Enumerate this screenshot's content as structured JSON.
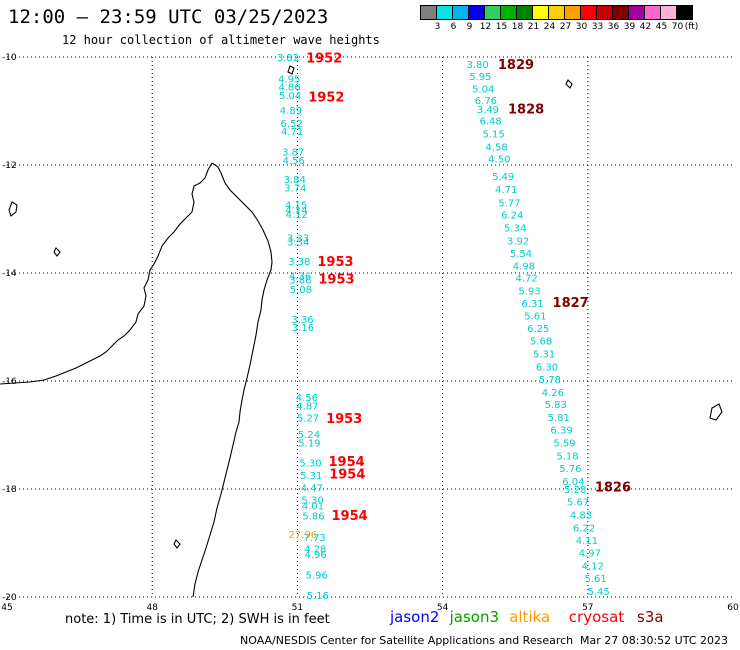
{
  "title": "12:00 — 23:59 UTC 03/25/2023",
  "subtitle": "12 hour collection of altimeter wave heights",
  "legend": {
    "unit": "(ft)",
    "labels": [
      "3",
      "6",
      "9",
      "12",
      "15",
      "18",
      "21",
      "24",
      "27",
      "30",
      "33",
      "36",
      "39",
      "42",
      "45",
      "70"
    ],
    "colors": [
      "#808080",
      "#00e5e5",
      "#00b4f0",
      "#0000f0",
      "#30d060",
      "#00b000",
      "#008000",
      "#ffff00",
      "#ffd000",
      "#ffa000",
      "#ff0000",
      "#c80000",
      "#800000",
      "#a000a0",
      "#ff66cc",
      "#ffb0d8",
      "#000000"
    ]
  },
  "axes": {
    "lon_ticks": [
      "45",
      "48",
      "51",
      "54",
      "57",
      "60"
    ],
    "lat_ticks": [
      "-10",
      "-12",
      "-14",
      "-16",
      "-18",
      "-20"
    ]
  },
  "note": "note: 1) Time is in UTC; 2) SWH is in feet",
  "satellites": [
    {
      "name": "jason2",
      "color": "#0000ff"
    },
    {
      "name": "jason3",
      "color": "#00a000"
    },
    {
      "name": "altika",
      "color": "#ff9900"
    },
    {
      "name": "cryosat",
      "color": "#ff0000"
    },
    {
      "name": "s3a",
      "color": "#800000"
    }
  ],
  "credit": "NOAA/NESDIS Center for Satellite Applications and Research",
  "timestamp": "Mar 27 08:30:52 UTC 2023",
  "colors": {
    "swh_cyan": "#00cccc",
    "time_red": "#ff0000",
    "time_dark": "#800000",
    "altika": "#ff9900"
  },
  "track_west": {
    "values": [
      {
        "v": "3.82",
        "lat": -10.0
      },
      {
        "v": "4.95",
        "lat": -10.4
      },
      {
        "v": "4.86",
        "lat": -10.55
      },
      {
        "v": "5.04",
        "lat": -10.7
      },
      {
        "v": "4.89",
        "lat": -10.98
      },
      {
        "v": "6.52",
        "lat": -11.22
      },
      {
        "v": "4.71",
        "lat": -11.37
      },
      {
        "v": "3.87",
        "lat": -11.75
      },
      {
        "v": "4.56",
        "lat": -11.91
      },
      {
        "v": "3.84",
        "lat": -12.26
      },
      {
        "v": "3.74",
        "lat": -12.42
      },
      {
        "v": "4.15",
        "lat": -12.73
      },
      {
        "v": "4.14",
        "lat": -12.82
      },
      {
        "v": "4.12",
        "lat": -12.91
      },
      {
        "v": "3.33",
        "lat": -13.34
      },
      {
        "v": "3.34",
        "lat": -13.42
      },
      {
        "v": "3.38",
        "lat": -13.78
      },
      {
        "v": "4.36",
        "lat": -14.05
      },
      {
        "v": "3.86",
        "lat": -14.12
      },
      {
        "v": "5.08",
        "lat": -14.3
      },
      {
        "v": "3.36",
        "lat": -14.85
      },
      {
        "v": "3.16",
        "lat": -15.0
      },
      {
        "v": "4.56",
        "lat": -16.3
      },
      {
        "v": "4.87",
        "lat": -16.45
      },
      {
        "v": "5.27",
        "lat": -16.68
      },
      {
        "v": "5.24",
        "lat": -16.98
      },
      {
        "v": "5.19",
        "lat": -17.14
      },
      {
        "v": "5.30",
        "lat": -17.51
      },
      {
        "v": "5.31",
        "lat": -17.74
      },
      {
        "v": "4.47",
        "lat": -17.97
      },
      {
        "v": "5.30",
        "lat": -18.19
      },
      {
        "v": "4.01",
        "lat": -18.31
      },
      {
        "v": "5.86",
        "lat": -18.49
      },
      {
        "v": "7.73",
        "lat": -18.89
      },
      {
        "v": "4.28",
        "lat": -19.1
      },
      {
        "v": "4.96",
        "lat": -19.2
      },
      {
        "v": "5.96",
        "lat": -19.58
      },
      {
        "v": "5.16",
        "lat": -19.96
      }
    ],
    "altika_value": {
      "v": "27.96",
      "lat": -18.83
    },
    "times": [
      {
        "t": "1952",
        "lat": -10.03
      },
      {
        "t": "1952",
        "lat": -10.75
      },
      {
        "t": "1953",
        "lat": -13.8
      },
      {
        "t": "1953",
        "lat": -14.12
      },
      {
        "t": "1953",
        "lat": -16.7
      },
      {
        "t": "1954",
        "lat": -17.5
      },
      {
        "t": "1954",
        "lat": -17.73
      },
      {
        "t": "1954",
        "lat": -18.5
      }
    ]
  },
  "track_east": {
    "values": [
      {
        "v": "3.80",
        "lat": -10.13
      },
      {
        "v": "5.95",
        "lat": -10.35
      },
      {
        "v": "5.04",
        "lat": -10.58
      },
      {
        "v": "6.76",
        "lat": -10.8
      },
      {
        "v": "3.49",
        "lat": -10.96
      },
      {
        "v": "6.48",
        "lat": -11.18
      },
      {
        "v": "5.15",
        "lat": -11.42
      },
      {
        "v": "4.58",
        "lat": -11.66
      },
      {
        "v": "4.50",
        "lat": -11.88
      },
      {
        "v": "5.49",
        "lat": -12.2
      },
      {
        "v": "4.71",
        "lat": -12.44
      },
      {
        "v": "5.77",
        "lat": -12.69
      },
      {
        "v": "6.24",
        "lat": -12.92
      },
      {
        "v": "5.34",
        "lat": -13.16
      },
      {
        "v": "3.92",
        "lat": -13.4
      },
      {
        "v": "5.54",
        "lat": -13.63
      },
      {
        "v": "4.98",
        "lat": -13.86
      },
      {
        "v": "4.72",
        "lat": -14.08
      },
      {
        "v": "5.93",
        "lat": -14.32
      },
      {
        "v": "6.31",
        "lat": -14.56
      },
      {
        "v": "5.61",
        "lat": -14.79
      },
      {
        "v": "6.25",
        "lat": -15.02
      },
      {
        "v": "5.68",
        "lat": -15.25
      },
      {
        "v": "5.31",
        "lat": -15.49
      },
      {
        "v": "6.30",
        "lat": -15.73
      },
      {
        "v": "5.78",
        "lat": -15.96
      },
      {
        "v": "4.26",
        "lat": -16.2
      },
      {
        "v": "5.83",
        "lat": -16.43
      },
      {
        "v": "5.81",
        "lat": -16.67
      },
      {
        "v": "6.39",
        "lat": -16.9
      },
      {
        "v": "5.59",
        "lat": -17.14
      },
      {
        "v": "5.18",
        "lat": -17.38
      },
      {
        "v": "5.76",
        "lat": -17.61
      },
      {
        "v": "6.04",
        "lat": -17.85
      },
      {
        "v": "5.28",
        "lat": -18.0
      },
      {
        "v": "5.67",
        "lat": -18.23
      },
      {
        "v": "4.83",
        "lat": -18.47
      },
      {
        "v": "6.22",
        "lat": -18.71
      },
      {
        "v": "4.11",
        "lat": -18.94
      },
      {
        "v": "4.97",
        "lat": -19.18
      },
      {
        "v": "4.12",
        "lat": -19.42
      },
      {
        "v": "5.61",
        "lat": -19.65
      },
      {
        "v": "5.45",
        "lat": -19.89
      }
    ],
    "times": [
      {
        "t": "1829",
        "lat": -10.15
      },
      {
        "t": "1828",
        "lat": -10.97
      },
      {
        "t": "1827",
        "lat": -14.56
      },
      {
        "t": "1826",
        "lat": -17.97
      }
    ]
  }
}
